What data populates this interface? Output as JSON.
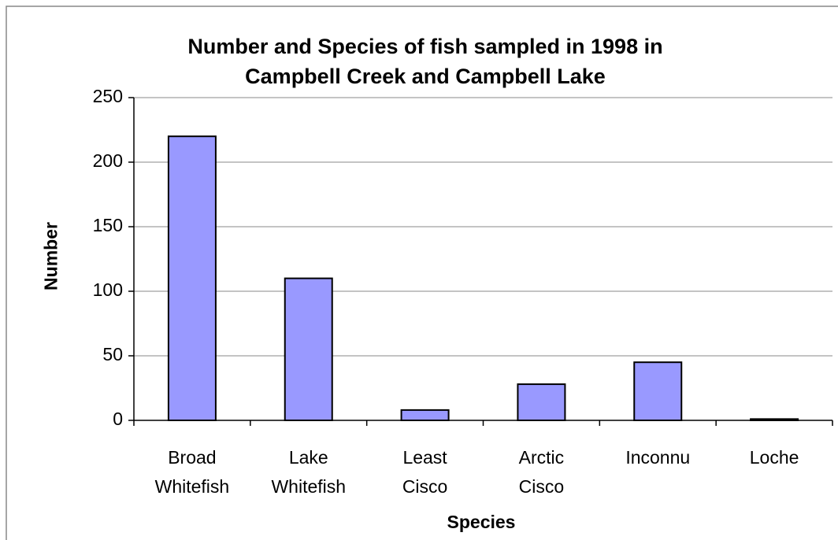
{
  "chart_data": {
    "type": "bar",
    "title": "Number and Species of fish sampled in 1998 in\nCampbell Creek and Campbell Lake",
    "x_label": "Species",
    "y_label": "Number",
    "categories": [
      "Broad\nWhitefish",
      "Lake\nWhitefish",
      "Least\nCisco",
      "Arctic\nCisco",
      "Inconnu",
      "Loche"
    ],
    "values": [
      220,
      110,
      8,
      28,
      45,
      1
    ],
    "color": "#9999ff",
    "ylim": [
      0,
      250
    ],
    "yticks": [
      0,
      50,
      100,
      150,
      200,
      250
    ],
    "grid": true
  }
}
